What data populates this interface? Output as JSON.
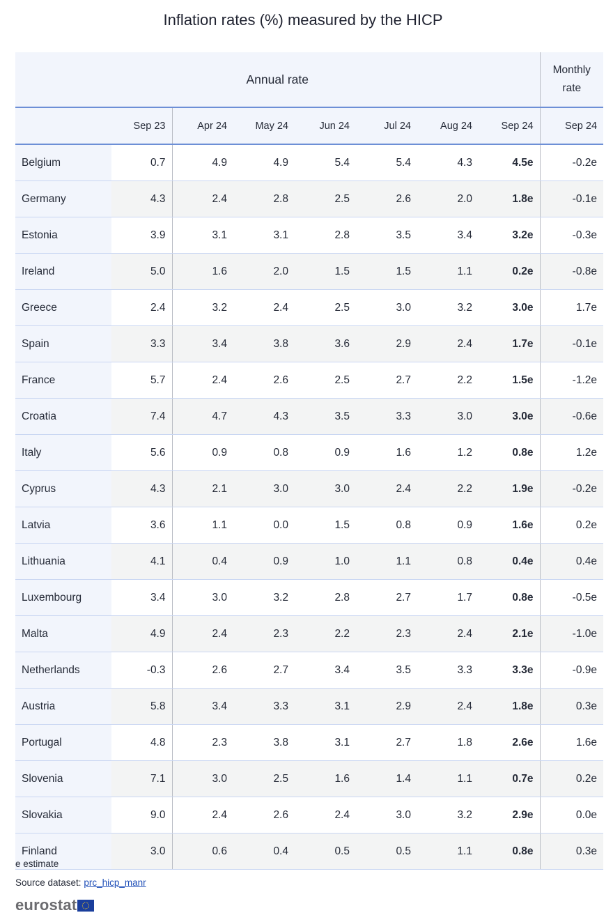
{
  "title": "Inflation rates (%) measured by the HICP",
  "header": {
    "group_annual": "Annual rate",
    "group_monthly_line1": "Monthly",
    "group_monthly_line2": "rate",
    "columns": [
      "Sep 23",
      "Apr 24",
      "May 24",
      "Jun 24",
      "Jul 24",
      "Aug 24",
      "Sep 24",
      "Sep 24"
    ]
  },
  "rows": [
    {
      "country": "Belgium",
      "values": [
        "0.7",
        "4.9",
        "4.9",
        "5.4",
        "5.4",
        "4.3",
        "4.5e",
        "-0.2e"
      ]
    },
    {
      "country": "Germany",
      "values": [
        "4.3",
        "2.4",
        "2.8",
        "2.5",
        "2.6",
        "2.0",
        "1.8e",
        "-0.1e"
      ]
    },
    {
      "country": "Estonia",
      "values": [
        "3.9",
        "3.1",
        "3.1",
        "2.8",
        "3.5",
        "3.4",
        "3.2e",
        "-0.3e"
      ]
    },
    {
      "country": "Ireland",
      "values": [
        "5.0",
        "1.6",
        "2.0",
        "1.5",
        "1.5",
        "1.1",
        "0.2e",
        "-0.8e"
      ]
    },
    {
      "country": "Greece",
      "values": [
        "2.4",
        "3.2",
        "2.4",
        "2.5",
        "3.0",
        "3.2",
        "3.0e",
        "1.7e"
      ]
    },
    {
      "country": "Spain",
      "values": [
        "3.3",
        "3.4",
        "3.8",
        "3.6",
        "2.9",
        "2.4",
        "1.7e",
        "-0.1e"
      ]
    },
    {
      "country": "France",
      "values": [
        "5.7",
        "2.4",
        "2.6",
        "2.5",
        "2.7",
        "2.2",
        "1.5e",
        "-1.2e"
      ]
    },
    {
      "country": "Croatia",
      "values": [
        "7.4",
        "4.7",
        "4.3",
        "3.5",
        "3.3",
        "3.0",
        "3.0e",
        "-0.6e"
      ]
    },
    {
      "country": "Italy",
      "values": [
        "5.6",
        "0.9",
        "0.8",
        "0.9",
        "1.6",
        "1.2",
        "0.8e",
        "1.2e"
      ]
    },
    {
      "country": "Cyprus",
      "values": [
        "4.3",
        "2.1",
        "3.0",
        "3.0",
        "2.4",
        "2.2",
        "1.9e",
        "-0.2e"
      ]
    },
    {
      "country": "Latvia",
      "values": [
        "3.6",
        "1.1",
        "0.0",
        "1.5",
        "0.8",
        "0.9",
        "1.6e",
        "0.2e"
      ]
    },
    {
      "country": "Lithuania",
      "values": [
        "4.1",
        "0.4",
        "0.9",
        "1.0",
        "1.1",
        "0.8",
        "0.4e",
        "0.4e"
      ]
    },
    {
      "country": "Luxembourg",
      "values": [
        "3.4",
        "3.0",
        "3.2",
        "2.8",
        "2.7",
        "1.7",
        "0.8e",
        "-0.5e"
      ]
    },
    {
      "country": "Malta",
      "values": [
        "4.9",
        "2.4",
        "2.3",
        "2.2",
        "2.3",
        "2.4",
        "2.1e",
        "-1.0e"
      ]
    },
    {
      "country": "Netherlands",
      "values": [
        "-0.3",
        "2.6",
        "2.7",
        "3.4",
        "3.5",
        "3.3",
        "3.3e",
        "-0.9e"
      ]
    },
    {
      "country": "Austria",
      "values": [
        "5.8",
        "3.4",
        "3.3",
        "3.1",
        "2.9",
        "2.4",
        "1.8e",
        "0.3e"
      ]
    },
    {
      "country": "Portugal",
      "values": [
        "4.8",
        "2.3",
        "3.8",
        "3.1",
        "2.7",
        "1.8",
        "2.6e",
        "1.6e"
      ]
    },
    {
      "country": "Slovenia",
      "values": [
        "7.1",
        "3.0",
        "2.5",
        "1.6",
        "1.4",
        "1.1",
        "0.7e",
        "0.2e"
      ]
    },
    {
      "country": "Slovakia",
      "values": [
        "9.0",
        "2.4",
        "2.6",
        "2.4",
        "3.0",
        "3.2",
        "2.9e",
        "0.0e"
      ]
    },
    {
      "country": "Finland",
      "values": [
        "3.0",
        "0.6",
        "0.4",
        "0.5",
        "0.5",
        "1.1",
        "0.8e",
        "0.3e"
      ]
    }
  ],
  "footer": {
    "note": "e estimate",
    "source_label": "Source dataset: ",
    "source_link": "prc_hicp_manr",
    "logo_text": "eurostat",
    "logo_icon": "eu-flag-icon"
  },
  "colors": {
    "header_bg": "#f2f5fc",
    "header_rule": "#6d8fd6",
    "row_alt_bg": "#f3f4f4",
    "row_rule": "#c9d6f2",
    "link": "#1f4fb8",
    "flag_blue": "#1a3e9c",
    "flag_stars": "#f3c623"
  }
}
